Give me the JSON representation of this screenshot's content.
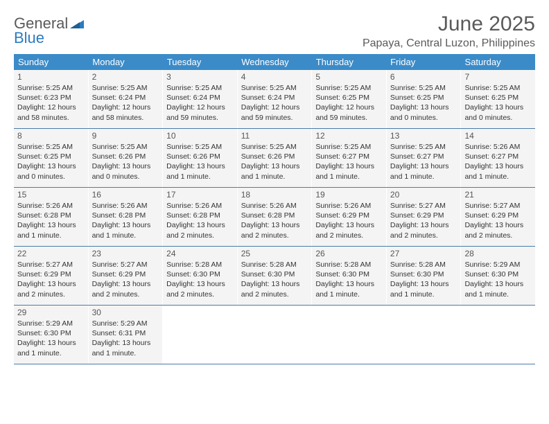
{
  "logo": {
    "text1": "General",
    "text2": "Blue"
  },
  "title": "June 2025",
  "location": "Papaya, Central Luzon, Philippines",
  "colors": {
    "header_bg": "#3b8bc8",
    "header_text": "#ffffff",
    "cell_bg": "#f4f4f4",
    "border": "#4a7ba8",
    "title_color": "#5a5a5a",
    "logo_gray": "#5a5a5a",
    "logo_blue": "#2b7bbf"
  },
  "days_of_week": [
    "Sunday",
    "Monday",
    "Tuesday",
    "Wednesday",
    "Thursday",
    "Friday",
    "Saturday"
  ],
  "weeks": [
    [
      {
        "n": "1",
        "sr": "5:25 AM",
        "ss": "6:23 PM",
        "dl": "12 hours and 58 minutes."
      },
      {
        "n": "2",
        "sr": "5:25 AM",
        "ss": "6:24 PM",
        "dl": "12 hours and 58 minutes."
      },
      {
        "n": "3",
        "sr": "5:25 AM",
        "ss": "6:24 PM",
        "dl": "12 hours and 59 minutes."
      },
      {
        "n": "4",
        "sr": "5:25 AM",
        "ss": "6:24 PM",
        "dl": "12 hours and 59 minutes."
      },
      {
        "n": "5",
        "sr": "5:25 AM",
        "ss": "6:25 PM",
        "dl": "12 hours and 59 minutes."
      },
      {
        "n": "6",
        "sr": "5:25 AM",
        "ss": "6:25 PM",
        "dl": "13 hours and 0 minutes."
      },
      {
        "n": "7",
        "sr": "5:25 AM",
        "ss": "6:25 PM",
        "dl": "13 hours and 0 minutes."
      }
    ],
    [
      {
        "n": "8",
        "sr": "5:25 AM",
        "ss": "6:25 PM",
        "dl": "13 hours and 0 minutes."
      },
      {
        "n": "9",
        "sr": "5:25 AM",
        "ss": "6:26 PM",
        "dl": "13 hours and 0 minutes."
      },
      {
        "n": "10",
        "sr": "5:25 AM",
        "ss": "6:26 PM",
        "dl": "13 hours and 1 minute."
      },
      {
        "n": "11",
        "sr": "5:25 AM",
        "ss": "6:26 PM",
        "dl": "13 hours and 1 minute."
      },
      {
        "n": "12",
        "sr": "5:25 AM",
        "ss": "6:27 PM",
        "dl": "13 hours and 1 minute."
      },
      {
        "n": "13",
        "sr": "5:25 AM",
        "ss": "6:27 PM",
        "dl": "13 hours and 1 minute."
      },
      {
        "n": "14",
        "sr": "5:26 AM",
        "ss": "6:27 PM",
        "dl": "13 hours and 1 minute."
      }
    ],
    [
      {
        "n": "15",
        "sr": "5:26 AM",
        "ss": "6:28 PM",
        "dl": "13 hours and 1 minute."
      },
      {
        "n": "16",
        "sr": "5:26 AM",
        "ss": "6:28 PM",
        "dl": "13 hours and 1 minute."
      },
      {
        "n": "17",
        "sr": "5:26 AM",
        "ss": "6:28 PM",
        "dl": "13 hours and 2 minutes."
      },
      {
        "n": "18",
        "sr": "5:26 AM",
        "ss": "6:28 PM",
        "dl": "13 hours and 2 minutes."
      },
      {
        "n": "19",
        "sr": "5:26 AM",
        "ss": "6:29 PM",
        "dl": "13 hours and 2 minutes."
      },
      {
        "n": "20",
        "sr": "5:27 AM",
        "ss": "6:29 PM",
        "dl": "13 hours and 2 minutes."
      },
      {
        "n": "21",
        "sr": "5:27 AM",
        "ss": "6:29 PM",
        "dl": "13 hours and 2 minutes."
      }
    ],
    [
      {
        "n": "22",
        "sr": "5:27 AM",
        "ss": "6:29 PM",
        "dl": "13 hours and 2 minutes."
      },
      {
        "n": "23",
        "sr": "5:27 AM",
        "ss": "6:29 PM",
        "dl": "13 hours and 2 minutes."
      },
      {
        "n": "24",
        "sr": "5:28 AM",
        "ss": "6:30 PM",
        "dl": "13 hours and 2 minutes."
      },
      {
        "n": "25",
        "sr": "5:28 AM",
        "ss": "6:30 PM",
        "dl": "13 hours and 2 minutes."
      },
      {
        "n": "26",
        "sr": "5:28 AM",
        "ss": "6:30 PM",
        "dl": "13 hours and 1 minute."
      },
      {
        "n": "27",
        "sr": "5:28 AM",
        "ss": "6:30 PM",
        "dl": "13 hours and 1 minute."
      },
      {
        "n": "28",
        "sr": "5:29 AM",
        "ss": "6:30 PM",
        "dl": "13 hours and 1 minute."
      }
    ],
    [
      {
        "n": "29",
        "sr": "5:29 AM",
        "ss": "6:30 PM",
        "dl": "13 hours and 1 minute."
      },
      {
        "n": "30",
        "sr": "5:29 AM",
        "ss": "6:31 PM",
        "dl": "13 hours and 1 minute."
      },
      null,
      null,
      null,
      null,
      null
    ]
  ],
  "labels": {
    "sunrise": "Sunrise:",
    "sunset": "Sunset:",
    "daylight": "Daylight:"
  }
}
